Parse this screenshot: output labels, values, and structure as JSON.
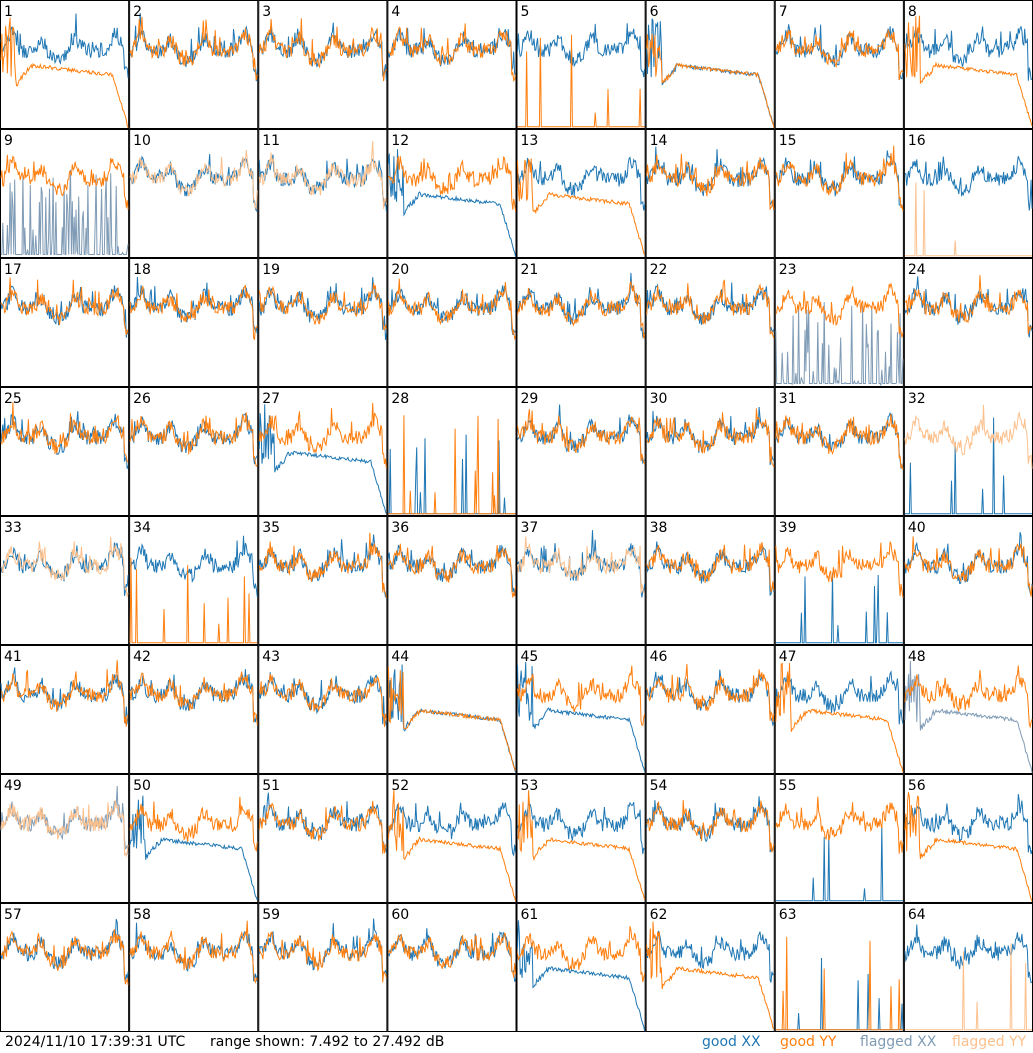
{
  "footer": {
    "timestamp": "2024/11/10 17:39:31 UTC",
    "range_text": "range shown: 7.492 to 27.492 dB"
  },
  "legend": [
    {
      "label": "good XX",
      "color": "#1f77b4"
    },
    {
      "label": "good YY",
      "color": "#ff7f0e"
    },
    {
      "label": "flagged XX",
      "color": "#7f9bb5"
    },
    {
      "label": "flagged YY",
      "color": "#fcc08c"
    }
  ],
  "chart_data": {
    "type": "line",
    "title": "",
    "ylim": [
      7.492,
      27.492
    ],
    "yunit": "dB",
    "grid": {
      "rows": 8,
      "cols": 8
    },
    "colors": {
      "good_xx": "#1f77b4",
      "good_yy": "#ff7f0e",
      "flagged_xx": "#7f9bb5",
      "flagged_yy": "#fcc08c"
    },
    "panels": [
      {
        "id": 1,
        "xx": "good",
        "yy": "good",
        "xx_shape": "normal",
        "yy_shape": "droop"
      },
      {
        "id": 2,
        "xx": "good",
        "yy": "good",
        "xx_shape": "normal",
        "yy_shape": "normal"
      },
      {
        "id": 3,
        "xx": "good",
        "yy": "good",
        "xx_shape": "normal",
        "yy_shape": "normal"
      },
      {
        "id": 4,
        "xx": "good",
        "yy": "good",
        "xx_shape": "normal",
        "yy_shape": "normal"
      },
      {
        "id": 5,
        "xx": "good",
        "yy": "good",
        "xx_shape": "normal",
        "yy_shape": "dead"
      },
      {
        "id": 6,
        "xx": "good",
        "yy": "good",
        "xx_shape": "droop",
        "yy_shape": "droop"
      },
      {
        "id": 7,
        "xx": "good",
        "yy": "good",
        "xx_shape": "normal",
        "yy_shape": "normal"
      },
      {
        "id": 8,
        "xx": "good",
        "yy": "good",
        "xx_shape": "normal",
        "yy_shape": "droop"
      },
      {
        "id": 9,
        "xx": "flagged",
        "yy": "good",
        "xx_shape": "noisy",
        "yy_shape": "normal"
      },
      {
        "id": 10,
        "xx": "good",
        "yy": "flagged",
        "xx_shape": "normal",
        "yy_shape": "normal"
      },
      {
        "id": 11,
        "xx": "good",
        "yy": "flagged",
        "xx_shape": "normal",
        "yy_shape": "normal"
      },
      {
        "id": 12,
        "xx": "good",
        "yy": "good",
        "xx_shape": "droop",
        "yy_shape": "normal"
      },
      {
        "id": 13,
        "xx": "good",
        "yy": "good",
        "xx_shape": "normal",
        "yy_shape": "droop"
      },
      {
        "id": 14,
        "xx": "good",
        "yy": "good",
        "xx_shape": "normal",
        "yy_shape": "normal"
      },
      {
        "id": 15,
        "xx": "good",
        "yy": "good",
        "xx_shape": "normal",
        "yy_shape": "normal"
      },
      {
        "id": 16,
        "xx": "good",
        "yy": "flagged",
        "xx_shape": "normal",
        "yy_shape": "dead"
      },
      {
        "id": 17,
        "xx": "good",
        "yy": "good",
        "xx_shape": "normal",
        "yy_shape": "normal"
      },
      {
        "id": 18,
        "xx": "good",
        "yy": "good",
        "xx_shape": "normal",
        "yy_shape": "normal"
      },
      {
        "id": 19,
        "xx": "good",
        "yy": "good",
        "xx_shape": "normal",
        "yy_shape": "normal"
      },
      {
        "id": 20,
        "xx": "good",
        "yy": "good",
        "xx_shape": "normal",
        "yy_shape": "normal"
      },
      {
        "id": 21,
        "xx": "good",
        "yy": "good",
        "xx_shape": "normal",
        "yy_shape": "normal"
      },
      {
        "id": 22,
        "xx": "good",
        "yy": "good",
        "xx_shape": "normal",
        "yy_shape": "normal"
      },
      {
        "id": 23,
        "xx": "flagged",
        "yy": "good",
        "xx_shape": "noisy",
        "yy_shape": "normal"
      },
      {
        "id": 24,
        "xx": "good",
        "yy": "good",
        "xx_shape": "normal",
        "yy_shape": "normal"
      },
      {
        "id": 25,
        "xx": "good",
        "yy": "good",
        "xx_shape": "normal",
        "yy_shape": "normal"
      },
      {
        "id": 26,
        "xx": "good",
        "yy": "good",
        "xx_shape": "normal",
        "yy_shape": "normal"
      },
      {
        "id": 27,
        "xx": "good",
        "yy": "good",
        "xx_shape": "droop",
        "yy_shape": "normal"
      },
      {
        "id": 28,
        "xx": "good",
        "yy": "good",
        "xx_shape": "dead",
        "yy_shape": "dead"
      },
      {
        "id": 29,
        "xx": "good",
        "yy": "good",
        "xx_shape": "normal",
        "yy_shape": "normal"
      },
      {
        "id": 30,
        "xx": "good",
        "yy": "good",
        "xx_shape": "normal",
        "yy_shape": "normal"
      },
      {
        "id": 31,
        "xx": "good",
        "yy": "good",
        "xx_shape": "normal",
        "yy_shape": "normal"
      },
      {
        "id": 32,
        "xx": "good",
        "yy": "flagged",
        "xx_shape": "dead",
        "yy_shape": "normal"
      },
      {
        "id": 33,
        "xx": "good",
        "yy": "flagged",
        "xx_shape": "normal",
        "yy_shape": "normal"
      },
      {
        "id": 34,
        "xx": "good",
        "yy": "good",
        "xx_shape": "normal",
        "yy_shape": "dead"
      },
      {
        "id": 35,
        "xx": "good",
        "yy": "good",
        "xx_shape": "normal",
        "yy_shape": "normal"
      },
      {
        "id": 36,
        "xx": "good",
        "yy": "good",
        "xx_shape": "normal",
        "yy_shape": "normal"
      },
      {
        "id": 37,
        "xx": "good",
        "yy": "flagged",
        "xx_shape": "normal",
        "yy_shape": "normal"
      },
      {
        "id": 38,
        "xx": "good",
        "yy": "good",
        "xx_shape": "normal",
        "yy_shape": "normal"
      },
      {
        "id": 39,
        "xx": "good",
        "yy": "good",
        "xx_shape": "dead",
        "yy_shape": "normal"
      },
      {
        "id": 40,
        "xx": "good",
        "yy": "good",
        "xx_shape": "normal",
        "yy_shape": "normal"
      },
      {
        "id": 41,
        "xx": "good",
        "yy": "good",
        "xx_shape": "normal",
        "yy_shape": "normal"
      },
      {
        "id": 42,
        "xx": "good",
        "yy": "good",
        "xx_shape": "normal",
        "yy_shape": "normal"
      },
      {
        "id": 43,
        "xx": "good",
        "yy": "good",
        "xx_shape": "normal",
        "yy_shape": "normal"
      },
      {
        "id": 44,
        "xx": "good",
        "yy": "good",
        "xx_shape": "droop",
        "yy_shape": "droop"
      },
      {
        "id": 45,
        "xx": "good",
        "yy": "good",
        "xx_shape": "droop",
        "yy_shape": "normal"
      },
      {
        "id": 46,
        "xx": "good",
        "yy": "good",
        "xx_shape": "normal",
        "yy_shape": "normal"
      },
      {
        "id": 47,
        "xx": "good",
        "yy": "good",
        "xx_shape": "normal",
        "yy_shape": "droop"
      },
      {
        "id": 48,
        "xx": "flagged",
        "yy": "good",
        "xx_shape": "droop",
        "yy_shape": "normal"
      },
      {
        "id": 49,
        "xx": "flagged",
        "yy": "flagged",
        "xx_shape": "normal",
        "yy_shape": "normal"
      },
      {
        "id": 50,
        "xx": "good",
        "yy": "good",
        "xx_shape": "droop",
        "yy_shape": "normal"
      },
      {
        "id": 51,
        "xx": "good",
        "yy": "good",
        "xx_shape": "normal",
        "yy_shape": "normal"
      },
      {
        "id": 52,
        "xx": "good",
        "yy": "good",
        "xx_shape": "normal",
        "yy_shape": "droop"
      },
      {
        "id": 53,
        "xx": "good",
        "yy": "good",
        "xx_shape": "normal",
        "yy_shape": "droop"
      },
      {
        "id": 54,
        "xx": "good",
        "yy": "good",
        "xx_shape": "normal",
        "yy_shape": "normal"
      },
      {
        "id": 55,
        "xx": "good",
        "yy": "good",
        "xx_shape": "dead",
        "yy_shape": "normal"
      },
      {
        "id": 56,
        "xx": "good",
        "yy": "good",
        "xx_shape": "normal",
        "yy_shape": "droop"
      },
      {
        "id": 57,
        "xx": "good",
        "yy": "good",
        "xx_shape": "normal",
        "yy_shape": "normal"
      },
      {
        "id": 58,
        "xx": "good",
        "yy": "good",
        "xx_shape": "normal",
        "yy_shape": "normal"
      },
      {
        "id": 59,
        "xx": "good",
        "yy": "good",
        "xx_shape": "normal",
        "yy_shape": "normal"
      },
      {
        "id": 60,
        "xx": "good",
        "yy": "good",
        "xx_shape": "normal",
        "yy_shape": "normal"
      },
      {
        "id": 61,
        "xx": "good",
        "yy": "good",
        "xx_shape": "droop",
        "yy_shape": "normal"
      },
      {
        "id": 62,
        "xx": "good",
        "yy": "good",
        "xx_shape": "normal",
        "yy_shape": "droop"
      },
      {
        "id": 63,
        "xx": "good",
        "yy": "good",
        "xx_shape": "dead",
        "yy_shape": "dead"
      },
      {
        "id": 64,
        "xx": "good",
        "yy": "flagged",
        "xx_shape": "normal",
        "yy_shape": "dead"
      }
    ]
  }
}
